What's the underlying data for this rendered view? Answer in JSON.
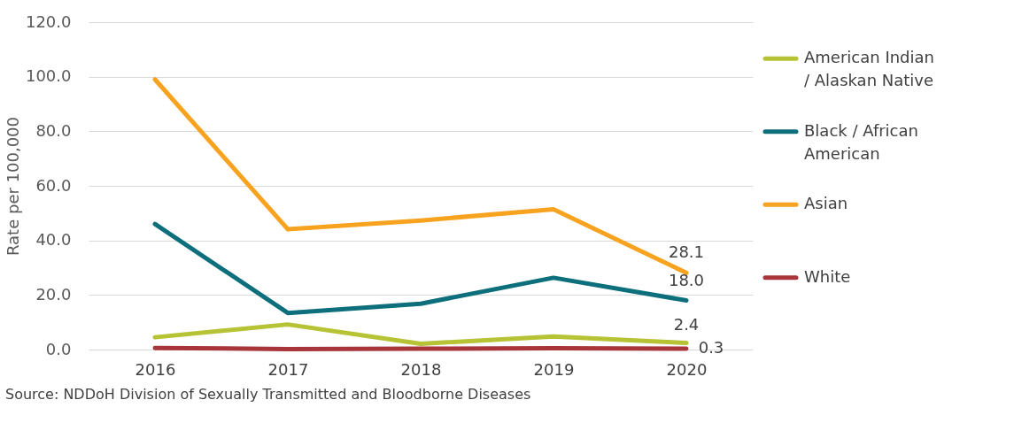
{
  "chart_data": {
    "type": "line",
    "ylabel": "Rate per 100,000",
    "categories": [
      "2016",
      "2017",
      "2018",
      "2019",
      "2020"
    ],
    "series": [
      {
        "name": "American Indian / Alaskan Native",
        "color": "#b5c334",
        "values": [
          4.5,
          9.2,
          2.1,
          4.8,
          2.4
        ],
        "value_labels": [
          null,
          null,
          null,
          null,
          "2.4"
        ]
      },
      {
        "name": "Black / African American",
        "color": "#0e6f7c",
        "values": [
          46.0,
          13.4,
          16.8,
          26.3,
          18.0
        ],
        "value_labels": [
          null,
          null,
          null,
          null,
          "18.0"
        ]
      },
      {
        "name": "Asian",
        "color": "#f8a31f",
        "values": [
          99.0,
          44.1,
          47.3,
          51.4,
          28.1
        ],
        "value_labels": [
          null,
          null,
          null,
          null,
          "28.1"
        ]
      },
      {
        "name": "White",
        "color": "#a8353a",
        "values": [
          0.6,
          0.2,
          0.3,
          0.5,
          0.3
        ],
        "value_labels": [
          null,
          null,
          null,
          null,
          "0.3"
        ]
      }
    ],
    "ylim": [
      0,
      120
    ],
    "yticks": [
      {
        "value": 0,
        "label": "0.0"
      },
      {
        "value": 20,
        "label": "20.0"
      },
      {
        "value": 40,
        "label": "40.0"
      },
      {
        "value": 60,
        "label": "60.0"
      },
      {
        "value": 80,
        "label": "80.0"
      },
      {
        "value": 100,
        "label": "100.0"
      },
      {
        "value": 120,
        "label": "120.0"
      }
    ],
    "grid": "y",
    "legend": "right",
    "marker": "none",
    "line_style": "solid",
    "annotations": [
      "Source: NDDoH Division of Sexually Transmitted and Bloodborne Diseases"
    ]
  }
}
